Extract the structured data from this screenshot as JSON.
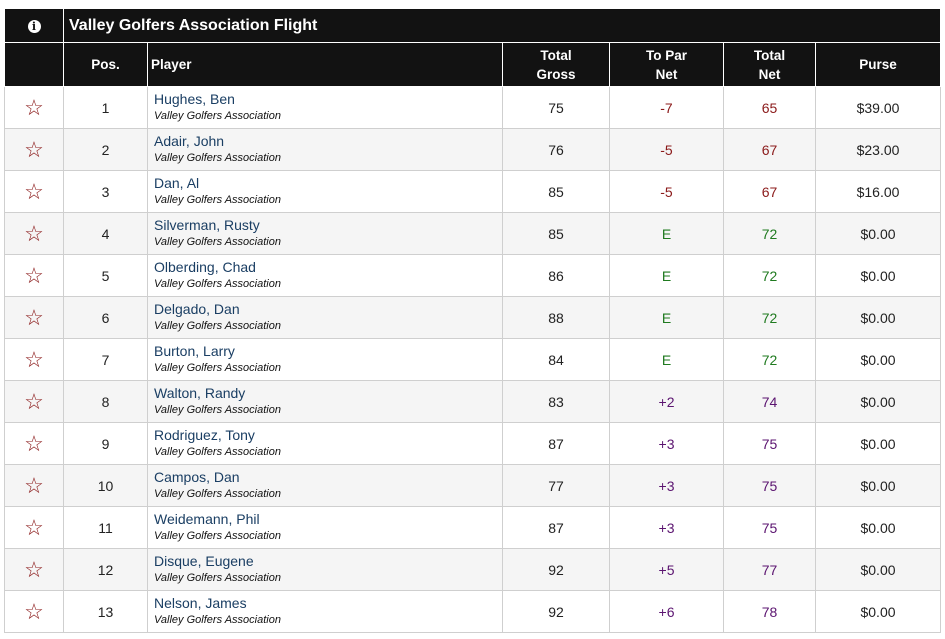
{
  "header": {
    "title": "Valley Golfers Association Flight",
    "info_icon": "info-icon",
    "columns": {
      "pos": "Pos.",
      "player": "Player",
      "gross_line1": "Total",
      "gross_line2": "Gross",
      "topar_line1": "To Par",
      "topar_line2": "Net",
      "net_line1": "Total",
      "net_line2": "Net",
      "purse": "Purse"
    }
  },
  "colors": {
    "red": "#8b1a1a",
    "green": "#1f7a1f",
    "purple": "#5b1470",
    "star": "#8b1a1a"
  },
  "icon_name": "star-outline-icon",
  "rows": [
    {
      "pos": "1",
      "name": "Hughes, Ben",
      "club": "Valley Golfers Association",
      "gross": "75",
      "topar": "-7",
      "net": "65",
      "purse": "$39.00",
      "tone": "red"
    },
    {
      "pos": "2",
      "name": "Adair, John",
      "club": "Valley Golfers Association",
      "gross": "76",
      "topar": "-5",
      "net": "67",
      "purse": "$23.00",
      "tone": "red"
    },
    {
      "pos": "3",
      "name": "Dan, Al",
      "club": "Valley Golfers Association",
      "gross": "85",
      "topar": "-5",
      "net": "67",
      "purse": "$16.00",
      "tone": "red"
    },
    {
      "pos": "4",
      "name": "Silverman, Rusty",
      "club": "Valley Golfers Association",
      "gross": "85",
      "topar": "E",
      "net": "72",
      "purse": "$0.00",
      "tone": "green"
    },
    {
      "pos": "5",
      "name": "Olberding, Chad",
      "club": "Valley Golfers Association",
      "gross": "86",
      "topar": "E",
      "net": "72",
      "purse": "$0.00",
      "tone": "green"
    },
    {
      "pos": "6",
      "name": "Delgado, Dan",
      "club": "Valley Golfers Association",
      "gross": "88",
      "topar": "E",
      "net": "72",
      "purse": "$0.00",
      "tone": "green"
    },
    {
      "pos": "7",
      "name": "Burton, Larry",
      "club": "Valley Golfers Association",
      "gross": "84",
      "topar": "E",
      "net": "72",
      "purse": "$0.00",
      "tone": "green"
    },
    {
      "pos": "8",
      "name": "Walton, Randy",
      "club": "Valley Golfers Association",
      "gross": "83",
      "topar": "+2",
      "net": "74",
      "purse": "$0.00",
      "tone": "purple"
    },
    {
      "pos": "9",
      "name": "Rodriguez, Tony",
      "club": "Valley Golfers Association",
      "gross": "87",
      "topar": "+3",
      "net": "75",
      "purse": "$0.00",
      "tone": "purple"
    },
    {
      "pos": "10",
      "name": "Campos, Dan",
      "club": "Valley Golfers Association",
      "gross": "77",
      "topar": "+3",
      "net": "75",
      "purse": "$0.00",
      "tone": "purple"
    },
    {
      "pos": "11",
      "name": "Weidemann, Phil",
      "club": "Valley Golfers Association",
      "gross": "87",
      "topar": "+3",
      "net": "75",
      "purse": "$0.00",
      "tone": "purple"
    },
    {
      "pos": "12",
      "name": "Disque, Eugene",
      "club": "Valley Golfers Association",
      "gross": "92",
      "topar": "+5",
      "net": "77",
      "purse": "$0.00",
      "tone": "purple"
    },
    {
      "pos": "13",
      "name": "Nelson, James",
      "club": "Valley Golfers Association",
      "gross": "92",
      "topar": "+6",
      "net": "78",
      "purse": "$0.00",
      "tone": "purple"
    }
  ]
}
